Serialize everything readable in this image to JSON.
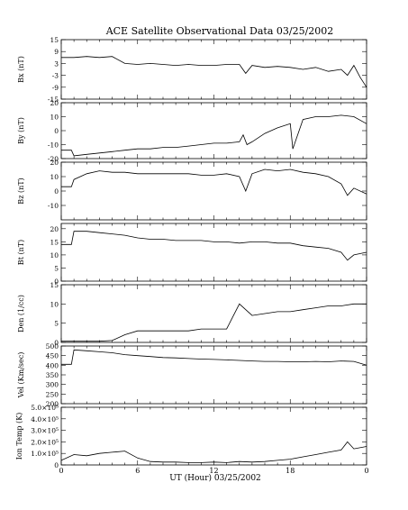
{
  "chart_data": {
    "type": "line",
    "title": "ACE Satellite Observational Data   03/25/2002",
    "xlabel": "UT (Hour)  03/25/2002",
    "x_ticks": [
      "0",
      "6",
      "12",
      "18",
      "0"
    ],
    "xlim": [
      0,
      24
    ],
    "line_color": "#000000",
    "panels": [
      {
        "name": "bx",
        "ylabel": "Bx (nT)",
        "yticks": [
          "15",
          "9",
          "3",
          "-3",
          "-9",
          "-15"
        ],
        "ylim": [
          -15,
          15
        ],
        "x": [
          0,
          1,
          2,
          3,
          4,
          5,
          6,
          7,
          8,
          9,
          10,
          11,
          12,
          13,
          14,
          14.5,
          15,
          16,
          17,
          18,
          19,
          20,
          21,
          22,
          22.5,
          23,
          23.5,
          24
        ],
        "values": [
          6,
          6,
          6.5,
          6,
          6.5,
          3,
          2.5,
          3,
          2.5,
          2,
          2.5,
          2,
          2,
          2.5,
          2.5,
          -2,
          2,
          1,
          1.5,
          1,
          0,
          1,
          -1,
          0,
          -3,
          2,
          -4,
          -9
        ]
      },
      {
        "name": "by",
        "ylabel": "By (nT)",
        "yticks": [
          "20",
          "10",
          "0",
          "-10",
          "-20"
        ],
        "ylim": [
          -20,
          20
        ],
        "x": [
          0,
          0.8,
          1,
          2,
          3,
          4,
          5,
          6,
          7,
          8,
          9,
          10,
          11,
          12,
          13,
          14,
          14.3,
          14.6,
          15,
          16,
          17,
          18,
          18.2,
          19,
          20,
          21,
          22,
          23,
          24
        ],
        "values": [
          -14,
          -14,
          -18,
          -17,
          -16,
          -15,
          -14,
          -13,
          -13,
          -12,
          -12,
          -11,
          -10,
          -9,
          -9,
          -8,
          -3,
          -10,
          -8,
          -2,
          2,
          5,
          -13,
          8,
          10,
          10,
          11,
          10,
          5
        ]
      },
      {
        "name": "bz",
        "ylabel": "Bz (nT)",
        "yticks": [
          "20",
          "10",
          "0",
          "-10"
        ],
        "ylim": [
          -20,
          20
        ],
        "x": [
          0,
          0.8,
          1,
          2,
          3,
          4,
          5,
          6,
          7,
          8,
          9,
          10,
          11,
          12,
          13,
          14,
          14.5,
          15,
          16,
          17,
          18,
          19,
          20,
          21,
          22,
          22.5,
          23,
          24
        ],
        "values": [
          3,
          3,
          8,
          12,
          14,
          13,
          13,
          12,
          12,
          12,
          12,
          12,
          11,
          11,
          12,
          10,
          0,
          12,
          15,
          14,
          15,
          13,
          12,
          10,
          5,
          -3,
          2,
          -2
        ]
      },
      {
        "name": "bt",
        "ylabel": "Bt (nT)",
        "yticks": [
          "20",
          "15",
          "10",
          "5",
          "0"
        ],
        "ylim": [
          0,
          22
        ],
        "x": [
          0,
          0.8,
          1,
          2,
          3,
          4,
          5,
          6,
          7,
          8,
          9,
          10,
          11,
          12,
          13,
          14,
          15,
          16,
          17,
          18,
          19,
          20,
          21,
          22,
          22.5,
          23,
          24
        ],
        "values": [
          14,
          14,
          19,
          19,
          18.5,
          18,
          17.5,
          16.5,
          16,
          16,
          15.5,
          15.5,
          15.5,
          15,
          15,
          14.5,
          15,
          15,
          14.5,
          14.5,
          13.5,
          13,
          12.5,
          11,
          8,
          10,
          11
        ]
      },
      {
        "name": "den",
        "ylabel": "Den (1/cc)",
        "yticks": [
          "15",
          "10",
          "5",
          "0"
        ],
        "ylim": [
          0,
          15
        ],
        "x": [
          0,
          1,
          2,
          3,
          4,
          5,
          6,
          7,
          8,
          9,
          10,
          11,
          12,
          13,
          14,
          15,
          16,
          17,
          18,
          19,
          20,
          21,
          22,
          23,
          24
        ],
        "values": [
          0.3,
          0.3,
          0.3,
          0.3,
          0.5,
          2,
          3,
          3,
          3,
          3,
          3,
          3.5,
          3.5,
          3.5,
          10,
          7,
          7.5,
          8,
          8,
          8.5,
          9,
          9.5,
          9.5,
          10,
          10
        ]
      },
      {
        "name": "vel",
        "ylabel": "Vel (Km/sec)",
        "yticks": [
          "500",
          "450",
          "400",
          "350",
          "300",
          "250",
          "200"
        ],
        "ylim": [
          200,
          500
        ],
        "x": [
          0,
          0.8,
          1,
          2,
          3,
          4,
          5,
          6,
          7,
          8,
          9,
          10,
          11,
          12,
          13,
          14,
          15,
          16,
          17,
          18,
          19,
          20,
          21,
          22,
          23,
          24
        ],
        "values": [
          405,
          405,
          480,
          475,
          470,
          465,
          455,
          450,
          445,
          440,
          438,
          435,
          432,
          430,
          428,
          425,
          422,
          420,
          420,
          418,
          418,
          420,
          418,
          422,
          420,
          400
        ]
      },
      {
        "name": "temp",
        "ylabel": "Ion Temp (K)",
        "yticks": [
          "5.0×10⁵",
          "4.0×10⁵",
          "3.0×10⁵",
          "2.0×10⁵",
          "1.0×10⁵",
          "0"
        ],
        "ylim": [
          0,
          500000
        ],
        "x": [
          0,
          1,
          2,
          3,
          4,
          5,
          6,
          7,
          8,
          9,
          10,
          11,
          12,
          13,
          14,
          15,
          16,
          17,
          18,
          19,
          20,
          21,
          22,
          22.5,
          23,
          24
        ],
        "values": [
          40000,
          90000,
          80000,
          100000,
          110000,
          120000,
          60000,
          30000,
          25000,
          25000,
          20000,
          20000,
          25000,
          20000,
          30000,
          25000,
          30000,
          40000,
          50000,
          70000,
          90000,
          110000,
          130000,
          200000,
          140000,
          160000
        ]
      }
    ]
  }
}
